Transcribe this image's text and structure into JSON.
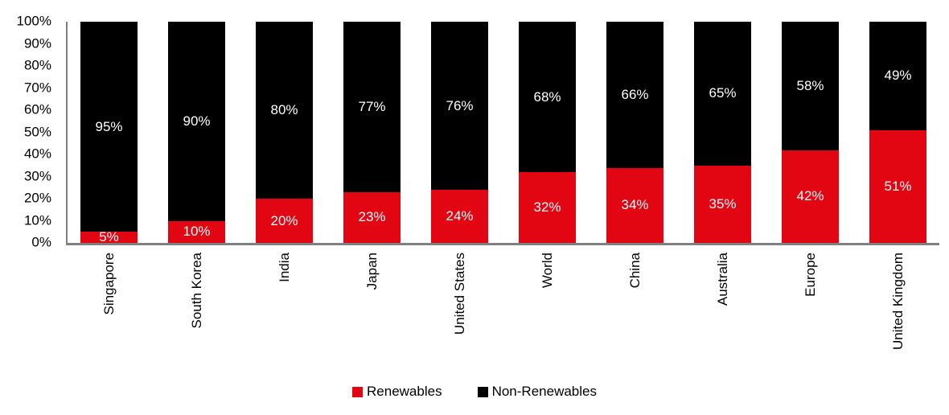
{
  "chart_data": {
    "type": "bar",
    "stacked": true,
    "title": "",
    "xlabel": "",
    "ylabel": "",
    "categories": [
      "Singapore",
      "South Korea",
      "India",
      "Japan",
      "United States",
      "World",
      "China",
      "Australia",
      "Europe",
      "United Kingdom"
    ],
    "series": [
      {
        "name": "Renewables",
        "color": "#E20613",
        "values": [
          5,
          10,
          20,
          23,
          24,
          32,
          34,
          35,
          42,
          51
        ],
        "labels": [
          "5%",
          "10%",
          "20%",
          "23%",
          "24%",
          "32%",
          "34%",
          "35%",
          "42%",
          "51%"
        ]
      },
      {
        "name": "Non-Renewables",
        "color": "#000000",
        "values": [
          95,
          90,
          80,
          77,
          76,
          68,
          66,
          65,
          58,
          49
        ],
        "labels": [
          "95%",
          "90%",
          "80%",
          "77%",
          "76%",
          "68%",
          "66%",
          "65%",
          "58%",
          "49%"
        ]
      }
    ],
    "y_axis": {
      "min": 0,
      "max": 100,
      "step": 10,
      "ticks": [
        "100%",
        "90%",
        "80%",
        "70%",
        "60%",
        "50%",
        "40%",
        "30%",
        "20%",
        "10%",
        "0%"
      ]
    },
    "legend": {
      "position": "bottom",
      "items": [
        {
          "label": "Renewables",
          "color": "#E20613"
        },
        {
          "label": "Non-Renewables",
          "color": "#000000"
        }
      ]
    },
    "grid": false,
    "data_label_color": "#FFFFFF",
    "axis_color": "#808080",
    "text_color": "#000000"
  }
}
